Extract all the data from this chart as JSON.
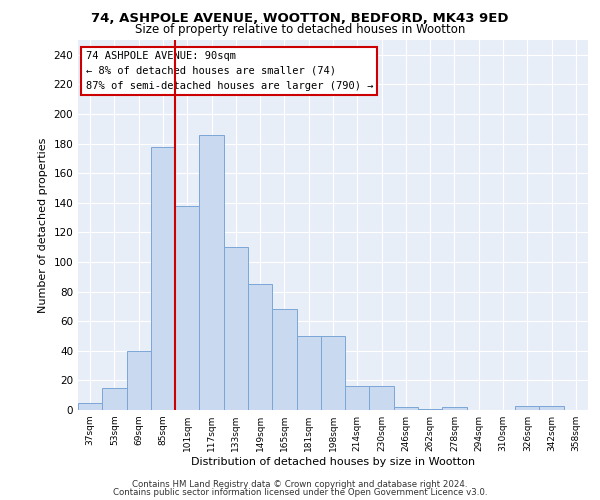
{
  "title_line1": "74, ASHPOLE AVENUE, WOOTTON, BEDFORD, MK43 9ED",
  "title_line2": "Size of property relative to detached houses in Wootton",
  "xlabel": "Distribution of detached houses by size in Wootton",
  "ylabel": "Number of detached properties",
  "bar_labels": [
    "37sqm",
    "53sqm",
    "69sqm",
    "85sqm",
    "101sqm",
    "117sqm",
    "133sqm",
    "149sqm",
    "165sqm",
    "181sqm",
    "198sqm",
    "214sqm",
    "230sqm",
    "246sqm",
    "262sqm",
    "278sqm",
    "294sqm",
    "310sqm",
    "326sqm",
    "342sqm",
    "358sqm"
  ],
  "bar_values": [
    5,
    15,
    40,
    178,
    138,
    186,
    110,
    85,
    68,
    50,
    50,
    16,
    16,
    2,
    1,
    2,
    0,
    0,
    3,
    3,
    0
  ],
  "bar_color": "#c9d9f0",
  "bar_edge_color": "#7aa6d6",
  "vline_x": 3.5,
  "vline_color": "#cc0000",
  "annotation_text": "74 ASHPOLE AVENUE: 90sqm\n← 8% of detached houses are smaller (74)\n87% of semi-detached houses are larger (790) →",
  "annotation_box_color": "white",
  "annotation_box_edge_color": "#cc0000",
  "ylim": [
    0,
    250
  ],
  "yticks": [
    0,
    20,
    40,
    60,
    80,
    100,
    120,
    140,
    160,
    180,
    200,
    220,
    240
  ],
  "background_color": "#e8eef8",
  "footer_line1": "Contains HM Land Registry data © Crown copyright and database right 2024.",
  "footer_line2": "Contains public sector information licensed under the Open Government Licence v3.0."
}
